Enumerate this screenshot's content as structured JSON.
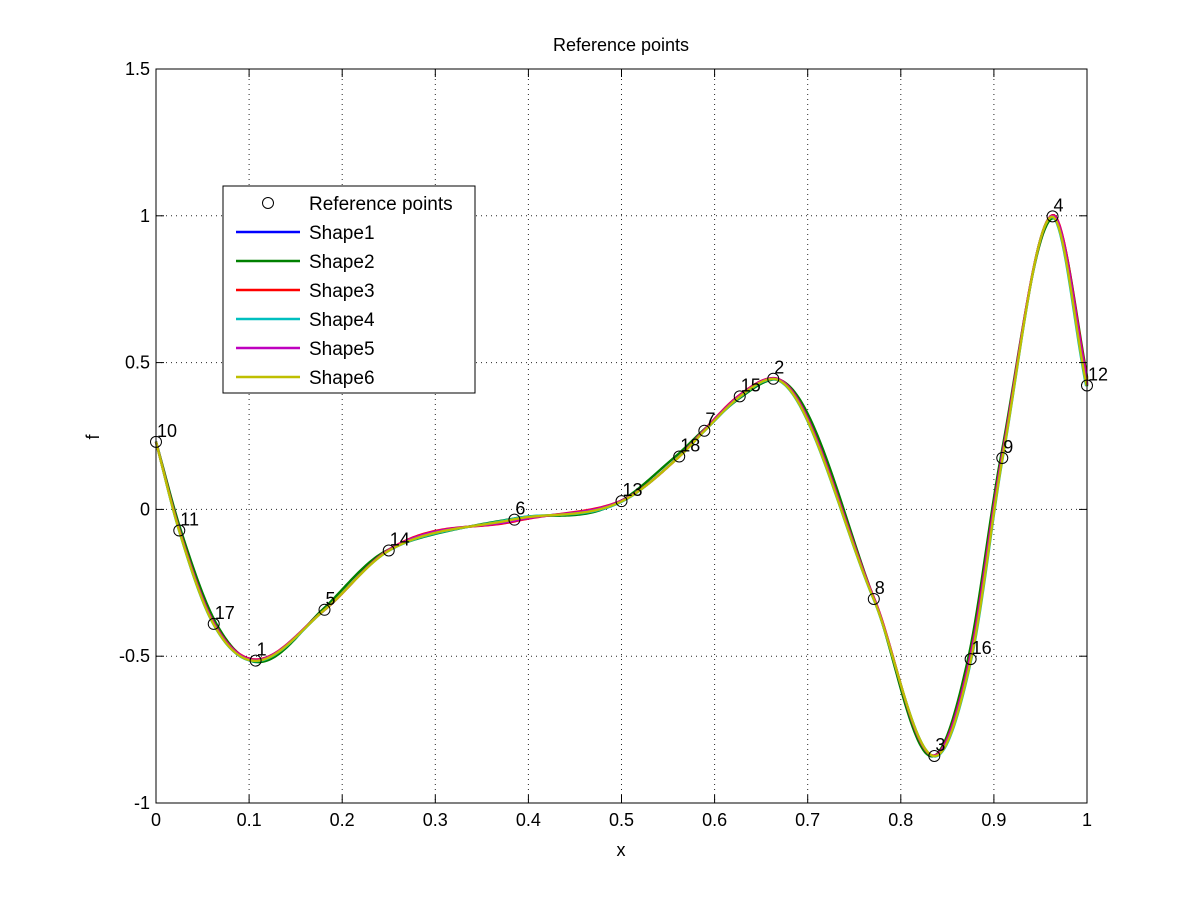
{
  "chart_data": {
    "type": "line",
    "title": "Reference points",
    "xlabel": "x",
    "ylabel": "f",
    "xlim": [
      0,
      1
    ],
    "ylim": [
      -1,
      1.5
    ],
    "xticks": [
      0,
      0.1,
      0.2,
      0.3,
      0.4,
      0.5,
      0.6,
      0.7,
      0.8,
      0.9,
      1
    ],
    "xtick_labels": [
      "0",
      "0.1",
      "0.2",
      "0.3",
      "0.4",
      "0.5",
      "0.6",
      "0.7",
      "0.8",
      "0.9",
      "1"
    ],
    "yticks": [
      -1,
      -0.5,
      0,
      0.5,
      1,
      1.5
    ],
    "ytick_labels": [
      "-1",
      "-0.5",
      "0",
      "0.5",
      "1",
      "1.5"
    ],
    "grid": true,
    "legend_position": "top-left",
    "reference_points": {
      "name": "Reference points",
      "marker": "circle",
      "points": [
        {
          "label": "1",
          "x": 0.107,
          "y": -0.515
        },
        {
          "label": "2",
          "x": 0.663,
          "y": 0.445
        },
        {
          "label": "3",
          "x": 0.836,
          "y": -0.84
        },
        {
          "label": "4",
          "x": 0.963,
          "y": 0.998
        },
        {
          "label": "5",
          "x": 0.181,
          "y": -0.342
        },
        {
          "label": "6",
          "x": 0.385,
          "y": -0.035
        },
        {
          "label": "7",
          "x": 0.589,
          "y": 0.268
        },
        {
          "label": "8",
          "x": 0.771,
          "y": -0.305
        },
        {
          "label": "9",
          "x": 0.909,
          "y": 0.175
        },
        {
          "label": "10",
          "x": 0.0,
          "y": 0.23
        },
        {
          "label": "11",
          "x": 0.025,
          "y": -0.072
        },
        {
          "label": "12",
          "x": 1.0,
          "y": 0.422
        },
        {
          "label": "13",
          "x": 0.5,
          "y": 0.028
        },
        {
          "label": "14",
          "x": 0.25,
          "y": -0.14
        },
        {
          "label": "15",
          "x": 0.627,
          "y": 0.385
        },
        {
          "label": "16",
          "x": 0.875,
          "y": -0.51
        },
        {
          "label": "17",
          "x": 0.062,
          "y": -0.39
        },
        {
          "label": "18",
          "x": 0.562,
          "y": 0.18
        }
      ]
    },
    "series": [
      {
        "name": "Shape1",
        "color": "#0000ff",
        "offset": [
          0.0,
          0.0
        ]
      },
      {
        "name": "Shape2",
        "color": "#008000",
        "offset": [
          0.0025,
          0.006
        ]
      },
      {
        "name": "Shape3",
        "color": "#ff0000",
        "offset": [
          0.0015,
          -0.005
        ]
      },
      {
        "name": "Shape4",
        "color": "#00bfbf",
        "offset": [
          -0.001,
          0.003
        ]
      },
      {
        "name": "Shape5",
        "color": "#bf00bf",
        "offset": [
          0.001,
          -0.003
        ]
      },
      {
        "name": "Shape6",
        "color": "#bfbf00",
        "offset": [
          -0.0005,
          0.001
        ]
      }
    ]
  }
}
